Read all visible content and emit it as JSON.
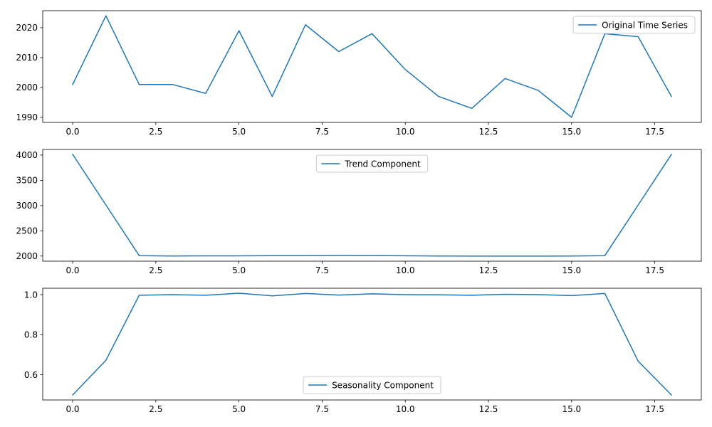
{
  "chart_data": [
    {
      "type": "line",
      "title": "",
      "xlabel": "",
      "ylabel": "",
      "grid": false,
      "xlim": [
        -0.9,
        18.9
      ],
      "ylim": [
        1988.3,
        2025.7
      ],
      "x_ticks": [
        0.0,
        2.5,
        5.0,
        7.5,
        10.0,
        12.5,
        15.0,
        17.5
      ],
      "x_tick_labels": [
        "0.0",
        "2.5",
        "5.0",
        "7.5",
        "10.0",
        "12.5",
        "15.0",
        "17.5"
      ],
      "y_ticks": [
        1990,
        2000,
        2010,
        2020
      ],
      "y_tick_labels": [
        "1990",
        "2000",
        "2010",
        "2020"
      ],
      "legend_position": "upper right",
      "series": [
        {
          "name": "Original Time Series",
          "color": "#1f77b4",
          "x": [
            0,
            1,
            2,
            3,
            4,
            5,
            6,
            7,
            8,
            9,
            10,
            11,
            12,
            13,
            14,
            15,
            16,
            17,
            18
          ],
          "values": [
            2001,
            2024,
            2001,
            2001,
            1998,
            2019,
            1997,
            2021,
            2012,
            2018,
            2006,
            1997,
            1993,
            2003,
            1999,
            1990,
            2018,
            2017,
            1997
          ]
        }
      ]
    },
    {
      "type": "line",
      "title": "",
      "xlabel": "",
      "ylabel": "",
      "grid": false,
      "xlim": [
        -0.9,
        18.9
      ],
      "ylim": [
        1898,
        4112
      ],
      "x_ticks": [
        0.0,
        2.5,
        5.0,
        7.5,
        10.0,
        12.5,
        15.0,
        17.5
      ],
      "x_tick_labels": [
        "0.0",
        "2.5",
        "5.0",
        "7.5",
        "10.0",
        "12.5",
        "15.0",
        "17.5"
      ],
      "y_ticks": [
        2000,
        2500,
        3000,
        3500,
        4000
      ],
      "y_tick_labels": [
        "2000",
        "2500",
        "3000",
        "3500",
        "4000"
      ],
      "legend_position": "upper center",
      "series": [
        {
          "name": "Trend Component",
          "color": "#1f77b4",
          "x": [
            0,
            1,
            2,
            3,
            4,
            5,
            6,
            7,
            8,
            9,
            10,
            11,
            12,
            13,
            14,
            15,
            16,
            17,
            18
          ],
          "values": [
            4015,
            3012,
            2008,
            2001,
            2004,
            2003,
            2008,
            2007,
            2012,
            2009,
            2005,
            2000,
            1999,
            1999,
            1998,
            2001,
            2008,
            3010,
            4012
          ]
        }
      ]
    },
    {
      "type": "line",
      "title": "",
      "xlabel": "",
      "ylabel": "",
      "grid": false,
      "xlim": [
        -0.9,
        18.9
      ],
      "ylim": [
        0.474,
        1.032
      ],
      "x_ticks": [
        0.0,
        2.5,
        5.0,
        7.5,
        10.0,
        12.5,
        15.0,
        17.5
      ],
      "x_tick_labels": [
        "0.0",
        "2.5",
        "5.0",
        "7.5",
        "10.0",
        "12.5",
        "15.0",
        "17.5"
      ],
      "y_ticks": [
        0.6,
        0.8,
        1.0
      ],
      "y_tick_labels": [
        "0.6",
        "0.8",
        "1.0"
      ],
      "legend_position": "lower center",
      "series": [
        {
          "name": "Seasonality Component",
          "color": "#1f77b4",
          "x": [
            0,
            1,
            2,
            3,
            4,
            5,
            6,
            7,
            8,
            9,
            10,
            11,
            12,
            13,
            14,
            15,
            16,
            17,
            18
          ],
          "values": [
            0.499,
            0.672,
            0.997,
            1.0,
            0.997,
            1.007,
            0.994,
            1.006,
            0.998,
            1.004,
            1.0,
            0.999,
            0.997,
            1.002,
            1.0,
            0.995,
            1.006,
            0.668,
            0.499
          ]
        }
      ]
    }
  ]
}
